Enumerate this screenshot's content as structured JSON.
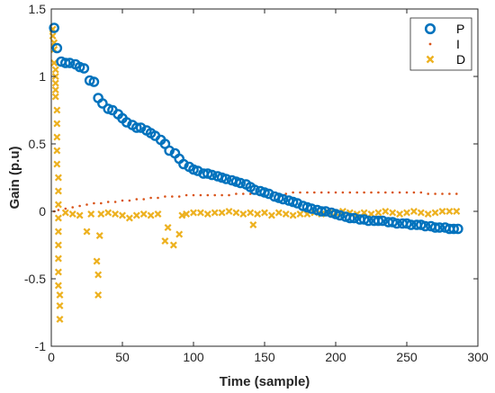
{
  "chart_data": {
    "type": "scatter",
    "xlabel": "Time (sample)",
    "ylabel": "Gain (p.u)",
    "xlim": [
      0,
      300
    ],
    "ylim": [
      -1,
      1.5
    ],
    "xticks": [
      "0",
      "50",
      "100",
      "150",
      "200",
      "250",
      "300"
    ],
    "yticks": [
      "-1",
      "-0.5",
      "0",
      "0.5",
      "1",
      "1.5"
    ],
    "legend_position": "top-right",
    "series": [
      {
        "name": "P",
        "marker": "circle",
        "color": "#0072BD",
        "x": [
          2,
          4,
          7,
          10,
          13,
          17,
          20,
          23,
          27,
          30,
          33,
          36,
          40,
          43,
          47,
          50,
          53,
          57,
          60,
          63,
          67,
          70,
          73,
          77,
          80,
          83,
          87,
          90,
          93,
          97,
          100,
          103,
          107,
          110,
          113,
          117,
          120,
          123,
          127,
          130,
          133,
          137,
          140,
          143,
          147,
          150,
          153,
          157,
          160,
          163,
          167,
          170,
          173,
          177,
          180,
          183,
          187,
          190,
          193,
          197,
          200,
          203,
          207,
          210,
          213,
          217,
          220,
          223,
          227,
          230,
          233,
          237,
          240,
          243,
          247,
          250,
          253,
          257,
          260,
          263,
          267,
          270,
          273,
          277,
          280,
          283,
          286
        ],
        "y": [
          1.36,
          1.21,
          1.11,
          1.1,
          1.1,
          1.09,
          1.07,
          1.06,
          0.97,
          0.96,
          0.84,
          0.8,
          0.76,
          0.75,
          0.72,
          0.69,
          0.66,
          0.64,
          0.62,
          0.62,
          0.6,
          0.58,
          0.56,
          0.53,
          0.5,
          0.45,
          0.43,
          0.39,
          0.35,
          0.33,
          0.31,
          0.3,
          0.28,
          0.28,
          0.27,
          0.26,
          0.25,
          0.24,
          0.23,
          0.22,
          0.21,
          0.2,
          0.18,
          0.16,
          0.15,
          0.14,
          0.13,
          0.11,
          0.1,
          0.09,
          0.08,
          0.07,
          0.06,
          0.04,
          0.03,
          0.02,
          0.01,
          0.0,
          0.0,
          -0.01,
          -0.02,
          -0.03,
          -0.04,
          -0.05,
          -0.05,
          -0.06,
          -0.06,
          -0.07,
          -0.07,
          -0.07,
          -0.07,
          -0.08,
          -0.08,
          -0.09,
          -0.09,
          -0.09,
          -0.1,
          -0.1,
          -0.1,
          -0.11,
          -0.11,
          -0.12,
          -0.12,
          -0.12,
          -0.13,
          -0.13,
          -0.13
        ]
      },
      {
        "name": "I",
        "marker": "dot",
        "color": "#D95319",
        "x": [
          2,
          5,
          10,
          15,
          20,
          25,
          30,
          35,
          40,
          45,
          50,
          55,
          60,
          65,
          70,
          75,
          80,
          85,
          90,
          95,
          100,
          105,
          110,
          115,
          120,
          125,
          130,
          135,
          140,
          145,
          150,
          155,
          160,
          165,
          170,
          175,
          180,
          185,
          190,
          195,
          200,
          205,
          210,
          215,
          220,
          225,
          230,
          235,
          240,
          245,
          250,
          255,
          260,
          265,
          270,
          275,
          280,
          285
        ],
        "y": [
          0.0,
          0.01,
          0.02,
          0.03,
          0.04,
          0.05,
          0.06,
          0.06,
          0.07,
          0.07,
          0.08,
          0.08,
          0.09,
          0.09,
          0.1,
          0.1,
          0.11,
          0.11,
          0.11,
          0.12,
          0.12,
          0.12,
          0.12,
          0.12,
          0.12,
          0.12,
          0.13,
          0.13,
          0.13,
          0.13,
          0.13,
          0.13,
          0.13,
          0.13,
          0.14,
          0.14,
          0.14,
          0.14,
          0.14,
          0.14,
          0.14,
          0.14,
          0.14,
          0.14,
          0.14,
          0.14,
          0.14,
          0.14,
          0.14,
          0.14,
          0.14,
          0.14,
          0.14,
          0.13,
          0.13,
          0.13,
          0.13,
          0.13
        ]
      },
      {
        "name": "D",
        "marker": "x",
        "color": "#EDB120",
        "x": [
          1,
          1,
          2,
          2,
          2,
          3,
          3,
          3,
          3,
          3,
          4,
          4,
          4,
          4,
          4,
          5,
          5,
          5,
          5,
          5,
          5,
          5,
          5,
          5,
          6,
          6,
          6,
          10,
          15,
          20,
          25,
          28,
          32,
          33,
          33,
          34,
          35,
          40,
          45,
          50,
          55,
          60,
          65,
          70,
          75,
          80,
          82,
          86,
          90,
          92,
          95,
          100,
          105,
          110,
          115,
          120,
          125,
          130,
          135,
          140,
          142,
          145,
          150,
          155,
          160,
          165,
          170,
          175,
          180,
          185,
          190,
          195,
          200,
          205,
          210,
          215,
          220,
          225,
          230,
          235,
          240,
          245,
          250,
          255,
          260,
          265,
          270,
          275,
          280,
          285
        ],
        "y": [
          1.35,
          1.3,
          1.25,
          1.2,
          1.1,
          1.05,
          1.0,
          0.95,
          0.9,
          0.85,
          0.75,
          0.65,
          0.55,
          0.45,
          0.35,
          0.25,
          0.15,
          0.05,
          -0.05,
          -0.15,
          -0.25,
          -0.35,
          -0.45,
          -0.55,
          -0.62,
          -0.7,
          -0.8,
          -0.01,
          -0.02,
          -0.03,
          -0.15,
          -0.02,
          -0.37,
          -0.47,
          -0.62,
          -0.18,
          -0.02,
          -0.01,
          -0.02,
          -0.03,
          -0.05,
          -0.03,
          -0.02,
          -0.03,
          -0.02,
          -0.22,
          -0.12,
          -0.25,
          -0.17,
          -0.03,
          -0.02,
          -0.01,
          -0.01,
          -0.02,
          -0.01,
          -0.01,
          0.0,
          -0.01,
          -0.02,
          -0.01,
          -0.1,
          -0.02,
          -0.01,
          -0.03,
          -0.01,
          -0.02,
          -0.03,
          -0.02,
          -0.02,
          -0.01,
          -0.02,
          -0.01,
          -0.01,
          0.0,
          -0.01,
          -0.02,
          -0.01,
          -0.02,
          -0.01,
          0.0,
          -0.01,
          -0.02,
          -0.01,
          0.0,
          -0.01,
          -0.02,
          -0.01,
          0.0,
          0.0,
          0.0
        ]
      }
    ]
  }
}
